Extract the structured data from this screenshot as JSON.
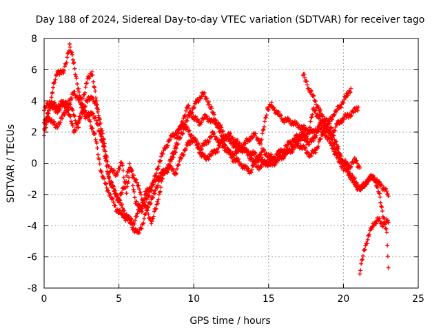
{
  "chart_data": {
    "type": "scatter",
    "title": "Day 188 of 2024, Sidereal Day-to-day VTEC variation (SDTVAR) for receiver tago",
    "xlabel": "GPS time / hours",
    "ylabel": "SDTVAR / TECUs",
    "xlim": [
      0,
      25
    ],
    "ylim": [
      -8,
      8
    ],
    "xticks": [
      0,
      5,
      10,
      15,
      20,
      25
    ],
    "yticks": [
      -8,
      -6,
      -4,
      -2,
      0,
      2,
      4,
      6,
      8
    ],
    "grid": true,
    "marker": "+",
    "series": [
      {
        "name": "track-1",
        "color": "#ff0000",
        "points": [
          [
            0,
            1.8
          ],
          [
            0.3,
            3.2
          ],
          [
            0.6,
            4.8
          ],
          [
            0.9,
            5.9
          ],
          [
            1.3,
            5.8
          ],
          [
            1.7,
            7.5
          ],
          [
            2.0,
            6.4
          ],
          [
            2.3,
            4.6
          ],
          [
            2.6,
            3.6
          ],
          [
            3.0,
            2.8
          ],
          [
            3.4,
            1.8
          ],
          [
            3.8,
            -0.5
          ],
          [
            4.1,
            -1.4
          ],
          [
            4.4,
            -2.0
          ],
          [
            4.8,
            -2.9
          ],
          [
            5.2,
            -3.3
          ],
          [
            5.6,
            -3.6
          ],
          [
            6.0,
            -4.2
          ],
          [
            6.3,
            -4.5
          ],
          [
            6.6,
            -3.8
          ],
          [
            7.0,
            -2.6
          ],
          [
            7.4,
            -1.9
          ],
          [
            7.8,
            -0.7
          ],
          [
            8.2,
            -0.4
          ],
          [
            8.6,
            0.4
          ],
          [
            9.0,
            1.4
          ],
          [
            9.4,
            2.4
          ],
          [
            9.8,
            3.3
          ],
          [
            10.2,
            3.9
          ],
          [
            10.6,
            4.5
          ],
          [
            11.0,
            3.9
          ],
          [
            11.4,
            2.9
          ],
          [
            11.8,
            1.9
          ],
          [
            12.2,
            0.9
          ],
          [
            12.6,
            0.3
          ],
          [
            13.0,
            0.1
          ],
          [
            13.4,
            -0.3
          ],
          [
            13.8,
            -0.5
          ],
          [
            14.2,
            0.2
          ],
          [
            14.6,
            0.8
          ],
          [
            15.0,
            0.5
          ],
          [
            15.4,
            0.2
          ],
          [
            15.8,
            0.4
          ],
          [
            16.2,
            0.7
          ],
          [
            16.6,
            0.9
          ],
          [
            17.0,
            1.2
          ],
          [
            17.4,
            0.9
          ],
          [
            17.8,
            0.5
          ],
          [
            18.2,
            0.9
          ],
          [
            18.6,
            1.9
          ],
          [
            19.0,
            2.6
          ],
          [
            19.4,
            3.2
          ],
          [
            19.8,
            3.7
          ],
          [
            20.2,
            4.3
          ],
          [
            20.5,
            4.8
          ]
        ]
      },
      {
        "name": "track-2",
        "color": "#ff0000",
        "points": [
          [
            0,
            2.2
          ],
          [
            0.4,
            3.8
          ],
          [
            0.8,
            3.3
          ],
          [
            1.2,
            3.7
          ],
          [
            1.6,
            4.0
          ],
          [
            2.0,
            3.1
          ],
          [
            2.3,
            2.2
          ],
          [
            2.6,
            4.2
          ],
          [
            2.9,
            5.3
          ],
          [
            3.2,
            5.9
          ],
          [
            3.5,
            3.9
          ],
          [
            3.8,
            1.9
          ],
          [
            4.1,
            0.2
          ],
          [
            4.4,
            -1.3
          ],
          [
            4.8,
            -1.9
          ],
          [
            5.2,
            -2.8
          ],
          [
            5.6,
            -3.5
          ],
          [
            6.0,
            -3.8
          ],
          [
            6.4,
            -2.9
          ],
          [
            6.8,
            -1.9
          ],
          [
            7.2,
            -1.4
          ],
          [
            7.6,
            -0.9
          ],
          [
            8.0,
            -0.6
          ],
          [
            8.4,
            0.0
          ],
          [
            8.8,
            1.2
          ],
          [
            9.2,
            2.6
          ],
          [
            9.6,
            3.6
          ],
          [
            10.0,
            2.9
          ],
          [
            10.4,
            2.6
          ],
          [
            10.8,
            3.0
          ],
          [
            11.2,
            2.7
          ],
          [
            11.6,
            2.6
          ],
          [
            12.0,
            1.9
          ],
          [
            12.4,
            1.4
          ],
          [
            12.8,
            1.1
          ],
          [
            13.2,
            0.9
          ],
          [
            13.6,
            0.7
          ],
          [
            14.0,
            0.6
          ],
          [
            14.4,
            0.3
          ],
          [
            14.8,
            0.0
          ],
          [
            15.2,
            -0.1
          ],
          [
            15.6,
            0.2
          ],
          [
            16.0,
            0.5
          ],
          [
            16.4,
            0.8
          ],
          [
            16.8,
            1.4
          ],
          [
            17.2,
            1.7
          ],
          [
            17.6,
            1.3
          ],
          [
            18.0,
            1.5
          ],
          [
            18.4,
            2.3
          ],
          [
            18.8,
            1.8
          ],
          [
            19.2,
            1.2
          ],
          [
            19.6,
            0.3
          ],
          [
            20.0,
            -0.3
          ],
          [
            20.4,
            -0.7
          ],
          [
            20.8,
            -1.5
          ],
          [
            21.2,
            -1.6
          ],
          [
            21.6,
            -1.1
          ],
          [
            22.0,
            -0.9
          ],
          [
            22.4,
            -1.3
          ],
          [
            22.8,
            -1.7
          ],
          [
            23.0,
            -2.1
          ]
        ]
      },
      {
        "name": "track-3",
        "color": "#ff0000",
        "points": [
          [
            0,
            2.6
          ],
          [
            0.4,
            2.9
          ],
          [
            0.8,
            2.3
          ],
          [
            1.2,
            2.9
          ],
          [
            1.6,
            3.6
          ],
          [
            2.0,
            4.6
          ],
          [
            2.4,
            3.9
          ],
          [
            2.8,
            2.9
          ],
          [
            3.2,
            3.3
          ],
          [
            3.6,
            2.4
          ],
          [
            4.0,
            1.0
          ],
          [
            4.4,
            -0.4
          ],
          [
            4.8,
            -0.7
          ],
          [
            5.2,
            0.0
          ],
          [
            5.5,
            -1.8
          ],
          [
            5.8,
            -0.3
          ],
          [
            6.1,
            -2.5
          ],
          [
            6.5,
            -3.0
          ],
          [
            6.9,
            -2.2
          ],
          [
            7.3,
            -1.3
          ],
          [
            7.7,
            0.1
          ],
          [
            8.1,
            1.0
          ],
          [
            8.5,
            1.7
          ],
          [
            8.9,
            2.0
          ],
          [
            9.3,
            2.5
          ],
          [
            9.7,
            2.0
          ],
          [
            10.1,
            1.4
          ],
          [
            10.5,
            1.0
          ],
          [
            10.9,
            1.4
          ],
          [
            11.3,
            1.9
          ],
          [
            11.7,
            1.4
          ],
          [
            12.1,
            0.9
          ],
          [
            12.5,
            0.6
          ],
          [
            12.9,
            0.7
          ],
          [
            13.3,
            1.1
          ],
          [
            13.7,
            1.6
          ],
          [
            14.1,
            1.8
          ],
          [
            14.5,
            1.3
          ],
          [
            14.9,
            3.5
          ],
          [
            15.2,
            3.7
          ],
          [
            15.6,
            3.2
          ],
          [
            16.0,
            2.8
          ],
          [
            16.4,
            2.7
          ],
          [
            16.8,
            2.5
          ],
          [
            17.2,
            2.3
          ],
          [
            17.6,
            2.1
          ],
          [
            18.0,
            2.0
          ],
          [
            18.4,
            2.4
          ],
          [
            18.8,
            2.9
          ],
          [
            19.2,
            2.2
          ],
          [
            19.6,
            1.0
          ],
          [
            20.0,
            0.1
          ],
          [
            20.4,
            -0.2
          ],
          [
            20.8,
            0.2
          ],
          [
            21.1,
            -0.3
          ]
        ]
      },
      {
        "name": "track-4",
        "color": "#ff0000",
        "points": [
          [
            0,
            3.4
          ],
          [
            0.4,
            4.0
          ],
          [
            0.8,
            3.6
          ],
          [
            1.2,
            3.9
          ],
          [
            1.6,
            3.4
          ],
          [
            2.0,
            2.0
          ],
          [
            2.4,
            2.9
          ],
          [
            2.8,
            3.9
          ],
          [
            3.2,
            4.3
          ],
          [
            3.6,
            3.4
          ],
          [
            4.0,
            1.4
          ],
          [
            4.3,
            -0.8
          ],
          [
            4.6,
            -1.6
          ],
          [
            5.0,
            -2.4
          ],
          [
            5.4,
            -1.3
          ],
          [
            5.7,
            -0.2
          ],
          [
            6.0,
            -0.8
          ],
          [
            6.4,
            -1.8
          ],
          [
            6.8,
            -2.9
          ],
          [
            7.2,
            -3.8
          ],
          [
            7.6,
            -2.4
          ],
          [
            8.0,
            -0.6
          ],
          [
            8.4,
            -0.3
          ],
          [
            8.8,
            -0.6
          ],
          [
            9.2,
            0.5
          ],
          [
            9.6,
            1.2
          ],
          [
            10.0,
            1.6
          ],
          [
            10.4,
            0.7
          ],
          [
            10.8,
            0.3
          ],
          [
            11.2,
            0.6
          ],
          [
            11.6,
            0.9
          ],
          [
            12.0,
            1.6
          ],
          [
            12.4,
            1.8
          ],
          [
            12.8,
            1.4
          ],
          [
            13.2,
            1.1
          ],
          [
            13.6,
            0.6
          ],
          [
            14.0,
            0.1
          ],
          [
            14.4,
            -0.3
          ],
          [
            14.8,
            0.1
          ],
          [
            15.2,
            0.2
          ],
          [
            15.6,
            0.6
          ],
          [
            16.0,
            0.9
          ],
          [
            16.4,
            1.3
          ],
          [
            16.8,
            1.6
          ],
          [
            17.2,
            1.9
          ],
          [
            17.6,
            1.7
          ],
          [
            18.0,
            3.5
          ],
          [
            18.4,
            2.9
          ],
          [
            18.8,
            2.2
          ],
          [
            19.2,
            1.8
          ],
          [
            19.6,
            2.5
          ],
          [
            20.0,
            2.9
          ],
          [
            20.4,
            3.1
          ],
          [
            20.8,
            3.4
          ],
          [
            21.0,
            3.6
          ]
        ]
      },
      {
        "name": "track-5",
        "color": "#ff0000",
        "points": [
          [
            17.3,
            5.7
          ],
          [
            17.7,
            4.8
          ],
          [
            18.1,
            4.0
          ],
          [
            18.5,
            3.2
          ],
          [
            18.9,
            2.2
          ],
          [
            19.3,
            1.4
          ],
          [
            19.6,
            0.6
          ],
          [
            20.0,
            0.0
          ],
          [
            20.4,
            -0.6
          ],
          [
            20.8,
            -1.2
          ],
          [
            21.2,
            -1.7
          ],
          [
            21.6,
            -1.1
          ],
          [
            22.0,
            -0.8
          ],
          [
            22.3,
            -1.6
          ],
          [
            22.6,
            -3.0
          ],
          [
            22.9,
            -4.5
          ],
          [
            23.0,
            -6.7
          ]
        ]
      },
      {
        "name": "track-6",
        "color": "#ff0000",
        "points": [
          [
            21.1,
            -7.0
          ],
          [
            21.4,
            -5.5
          ],
          [
            21.7,
            -4.6
          ],
          [
            22.0,
            -3.9
          ],
          [
            22.3,
            -3.6
          ],
          [
            22.6,
            -3.9
          ],
          [
            22.9,
            -3.7
          ],
          [
            23.0,
            -3.8
          ]
        ]
      }
    ]
  }
}
